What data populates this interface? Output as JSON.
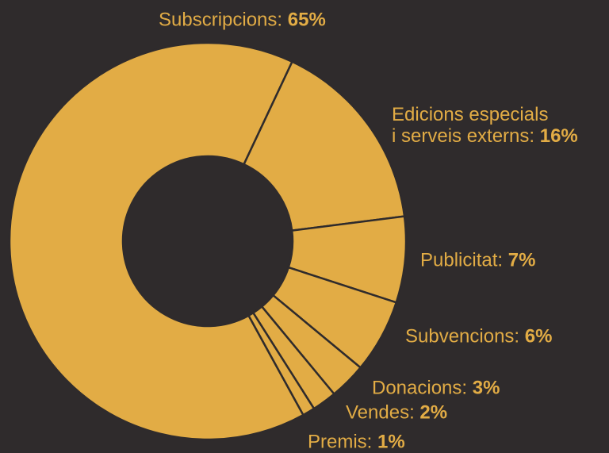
{
  "chart_data": {
    "type": "donut",
    "categories": [
      "Subscripcions:",
      [
        "Edicions especials",
        "i serveis externs:"
      ],
      "Publicitat:",
      "Subvencions:",
      "Donacions:",
      "Vendes:",
      "Premis:"
    ],
    "values": [
      65,
      16,
      7,
      6,
      3,
      2,
      1
    ],
    "value_labels": [
      "65%",
      "16%",
      "7%",
      "6%",
      "3%",
      "2%",
      "1%"
    ],
    "color": "#e2ac45"
  }
}
